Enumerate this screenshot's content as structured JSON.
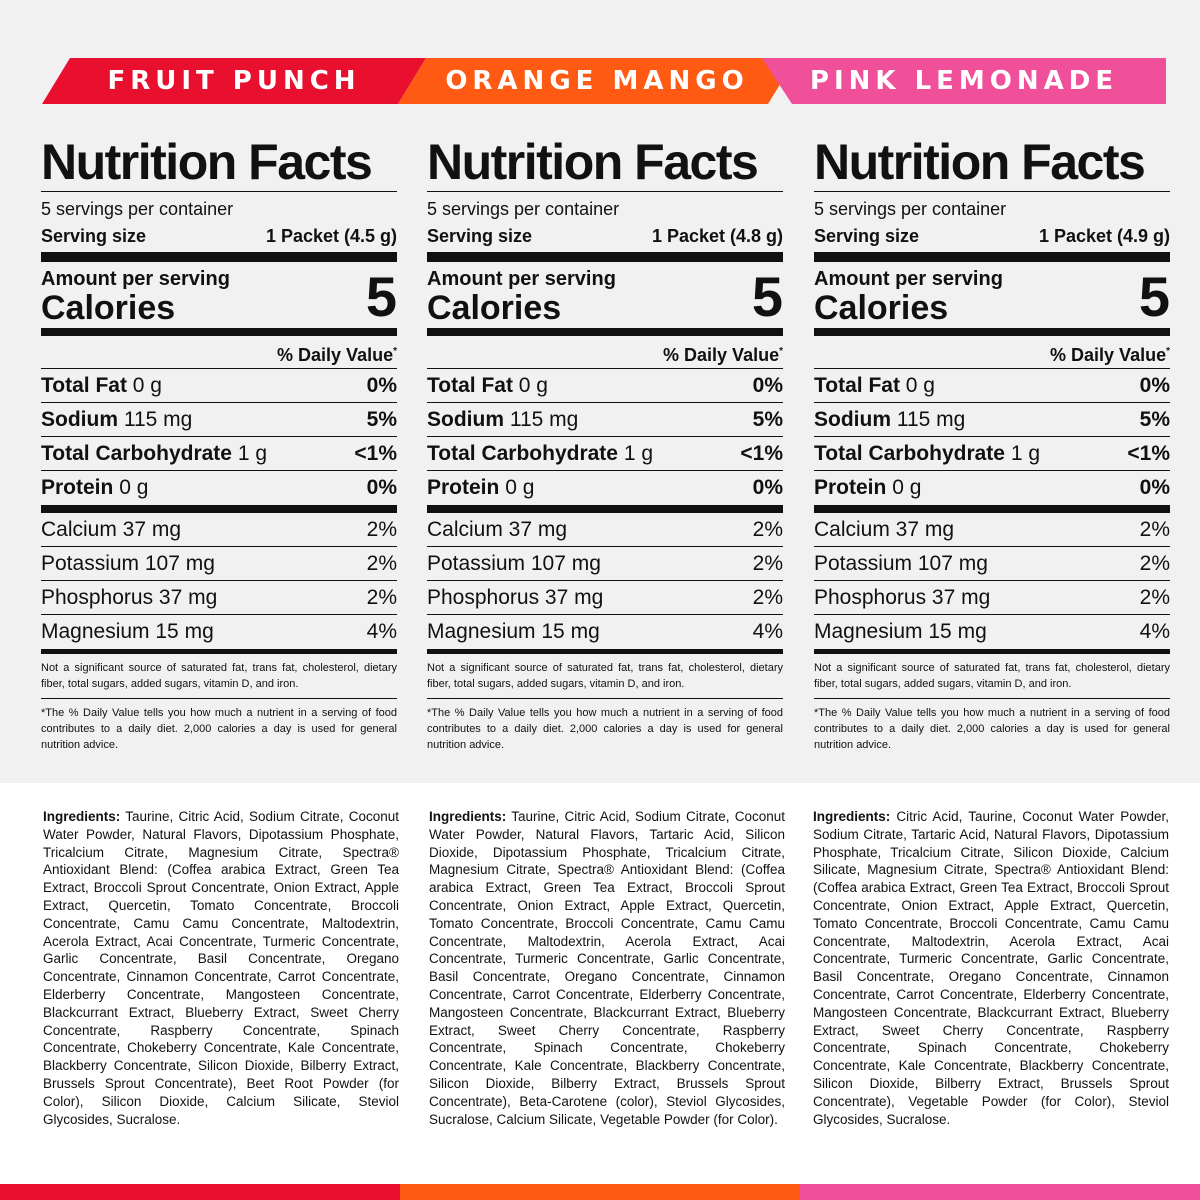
{
  "colors": {
    "fruit_punch": "#e8102e",
    "orange_mango": "#ff5a14",
    "pink_lemonade": "#f0509a"
  },
  "banners": [
    "FRUIT PUNCH",
    "ORANGE MANGO",
    "PINK LEMONADE"
  ],
  "labels": {
    "title": "Nutrition Facts",
    "serving_size": "Serving size",
    "amount_per_serving": "Amount per serving",
    "calories": "Calories",
    "daily_value": "% Daily Value",
    "ingredients_label": "Ingredients:"
  },
  "panels": [
    {
      "servings": "5 servings per container",
      "serving_size": "1 Packet (4.5 g)",
      "calories": "5",
      "nutrients": [
        {
          "name": "Total Fat",
          "amount": "0 g",
          "dv": "0%"
        },
        {
          "name": "Sodium",
          "amount": "115 mg",
          "dv": "5%"
        },
        {
          "name": "Total Carbohydrate",
          "amount": "1 g",
          "dv": "<1%"
        },
        {
          "name": "Protein",
          "amount": "0 g",
          "dv": "0%"
        }
      ],
      "vitamins": [
        {
          "label": "Calcium 37 mg",
          "dv": "2%"
        },
        {
          "label": "Potassium 107 mg",
          "dv": "2%"
        },
        {
          "label": "Phosphorus 37 mg",
          "dv": "2%"
        },
        {
          "label": "Magnesium 15 mg",
          "dv": "4%"
        }
      ],
      "note1": "Not a significant source of saturated fat, trans fat, cholesterol, dietary fiber, total sugars, added sugars, vitamin D, and iron.",
      "note2": "*The % Daily Value tells you how much a nutrient in a serving of food contributes to a daily diet. 2,000 calories a day is used for general nutrition advice.",
      "ingredients": "Taurine, Citric Acid, Sodium Citrate, Coconut Water Powder, Natural Flavors, Dipotassium Phosphate, Tricalcium Citrate, Magnesium Citrate, Spectra® Antioxidant Blend: (Coffea arabica Extract, Green Tea Extract, Broccoli Sprout Concentrate, Onion Extract, Apple Extract, Quercetin, Tomato Concentrate, Broccoli Concentrate, Camu Camu Concentrate, Maltodextrin, Acerola Extract, Acai Concentrate, Turmeric Concentrate, Garlic Concentrate, Basil Concentrate, Oregano Concentrate, Cinnamon Concentrate, Carrot Concentrate, Elderberry Concentrate, Mangosteen Concentrate, Blackcurrant Extract, Blueberry Extract, Sweet Cherry Concentrate, Raspberry Concentrate, Spinach Concentrate, Chokeberry Concentrate, Kale Concentrate, Blackberry Concentrate, Silicon Dioxide, Bilberry Extract, Brussels Sprout Concentrate), Beet Root Powder (for Color), Silicon Dioxide, Calcium Silicate, Steviol Glycosides, Sucralose."
    },
    {
      "servings": "5 servings per container",
      "serving_size": "1 Packet (4.8 g)",
      "calories": "5",
      "nutrients": [
        {
          "name": "Total Fat",
          "amount": "0 g",
          "dv": "0%"
        },
        {
          "name": "Sodium",
          "amount": "115 mg",
          "dv": "5%"
        },
        {
          "name": "Total Carbohydrate",
          "amount": "1 g",
          "dv": "<1%"
        },
        {
          "name": "Protein",
          "amount": "0 g",
          "dv": "0%"
        }
      ],
      "vitamins": [
        {
          "label": "Calcium 37 mg",
          "dv": "2%"
        },
        {
          "label": "Potassium 107 mg",
          "dv": "2%"
        },
        {
          "label": "Phosphorus 37 mg",
          "dv": "2%"
        },
        {
          "label": "Magnesium 15 mg",
          "dv": "4%"
        }
      ],
      "note1": "Not a significant source of saturated fat, trans fat, cholesterol, dietary fiber, total sugars, added sugars, vitamin D, and iron.",
      "note2": "*The % Daily Value tells you how much a nutrient in a serving of food contributes to a daily diet. 2,000 calories a day is used for general nutrition advice.",
      "ingredients": "Taurine, Citric Acid, Sodium Citrate, Coconut Water Powder, Natural Flavors, Tartaric Acid, Silicon Dioxide, Dipotassium Phosphate, Tricalcium Citrate, Magnesium Citrate, Spectra® Antioxidant Blend: (Coffea arabica Extract, Green Tea Extract, Broccoli Sprout Concentrate, Onion Extract, Apple Extract, Quercetin, Tomato Concentrate, Broccoli Concentrate, Camu Camu Concentrate, Maltodextrin, Acerola Extract, Acai Concentrate, Turmeric Concentrate, Garlic Concentrate, Basil Concentrate, Oregano Concentrate, Cinnamon Concentrate, Carrot Concentrate, Elderberry Concentrate, Mangosteen Concentrate, Blackcurrant Extract, Blueberry Extract, Sweet Cherry Concentrate, Raspberry Concentrate, Spinach Concentrate, Chokeberry Concentrate, Kale Concentrate, Blackberry Concentrate, Silicon Dioxide, Bilberry Extract, Brussels Sprout Concentrate), Beta-Carotene (color), Steviol Glycosides, Sucralose, Calcium Silicate, Vegetable Powder (for Color)."
    },
    {
      "servings": "5 servings per container",
      "serving_size": "1 Packet (4.9 g)",
      "calories": "5",
      "nutrients": [
        {
          "name": "Total Fat",
          "amount": "0 g",
          "dv": "0%"
        },
        {
          "name": "Sodium",
          "amount": "115 mg",
          "dv": "5%"
        },
        {
          "name": "Total Carbohydrate",
          "amount": "1 g",
          "dv": "<1%"
        },
        {
          "name": "Protein",
          "amount": "0 g",
          "dv": "0%"
        }
      ],
      "vitamins": [
        {
          "label": "Calcium 37 mg",
          "dv": "2%"
        },
        {
          "label": "Potassium 107 mg",
          "dv": "2%"
        },
        {
          "label": "Phosphorus 37 mg",
          "dv": "2%"
        },
        {
          "label": "Magnesium 15 mg",
          "dv": "4%"
        }
      ],
      "note1": "Not a significant source of saturated fat, trans fat, cholesterol, dietary fiber, total sugars, added sugars, vitamin D, and iron.",
      "note2": "*The % Daily Value tells you how much a nutrient in a serving of food contributes to a daily diet. 2,000 calories a day is used for general nutrition advice.",
      "ingredients": "Citric Acid, Taurine, Coconut Water Powder, Sodium Citrate, Tartaric Acid, Natural Flavors, Dipotassium Phosphate, Tricalcium Citrate, Silicon Dioxide, Calcium Silicate, Magnesium Citrate, Spectra® Antioxidant Blend: (Coffea arabica Extract, Green Tea Extract, Broccoli Sprout Concentrate, Onion Extract, Apple Extract, Quercetin, Tomato Concentrate, Broccoli Concentrate, Camu Camu Concentrate, Maltodextrin, Acerola Extract, Acai Concentrate, Turmeric Concentrate, Garlic Concentrate, Basil Concentrate, Oregano Concentrate, Cinnamon Concentrate, Carrot Concentrate, Elderberry Concentrate, Mangosteen Concentrate, Blackcurrant Extract, Blueberry Extract, Sweet Cherry Concentrate, Raspberry Concentrate, Spinach Concentrate, Chokeberry Concentrate, Kale Concentrate, Blackberry Concentrate, Silicon Dioxide, Bilberry Extract, Brussels Sprout Concentrate), Vegetable Powder (for Color), Steviol Glycosides, Sucralose."
    }
  ]
}
